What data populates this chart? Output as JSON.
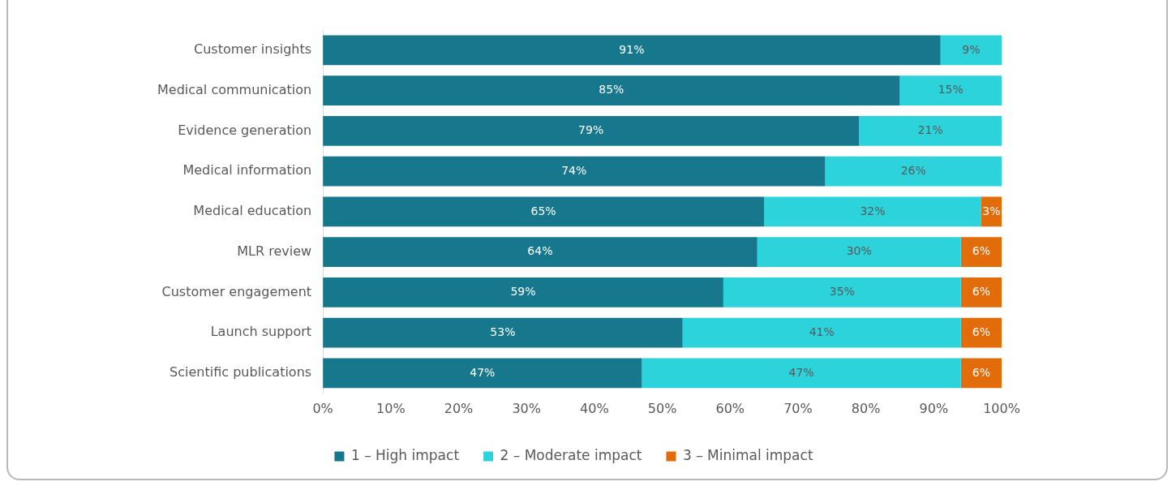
{
  "chart_data": {
    "type": "bar",
    "orientation": "horizontal",
    "stacked": true,
    "categories": [
      "Customer insights",
      "Medical communication",
      "Evidence generation",
      "Medical information",
      "Medical education",
      "MLR review",
      "Customer engagement",
      "Launch support",
      "Scientific publications"
    ],
    "series": [
      {
        "name": "1 – High impact",
        "color": "#17788d",
        "values": [
          91,
          85,
          79,
          74,
          65,
          64,
          59,
          53,
          47
        ],
        "value_labels": [
          "91%",
          "85%",
          "79%",
          "74%",
          "65%",
          "64%",
          "59%",
          "53%",
          "47%"
        ]
      },
      {
        "name": "2 – Moderate impact",
        "color": "#2dd3da",
        "values": [
          9,
          15,
          21,
          26,
          32,
          30,
          35,
          41,
          47
        ],
        "value_labels": [
          "9%",
          "15%",
          "21%",
          "26%",
          "32%",
          "30%",
          "35%",
          "41%",
          "47%"
        ]
      },
      {
        "name": "3 – Minimal impact",
        "color": "#e36c0a",
        "values": [
          0,
          0,
          0,
          0,
          3,
          6,
          6,
          6,
          6
        ],
        "value_labels": [
          null,
          null,
          null,
          null,
          "3%",
          "6%",
          "6%",
          "6%",
          "6%"
        ]
      }
    ],
    "xlim": [
      0,
      100
    ],
    "xticks": [
      {
        "value": 0,
        "label": "0%"
      },
      {
        "value": 10,
        "label": "10%"
      },
      {
        "value": 20,
        "label": "20%"
      },
      {
        "value": 30,
        "label": "30%"
      },
      {
        "value": 40,
        "label": "40%"
      },
      {
        "value": 50,
        "label": "50%"
      },
      {
        "value": 60,
        "label": "60%"
      },
      {
        "value": 70,
        "label": "70%"
      },
      {
        "value": 80,
        "label": "80%"
      },
      {
        "value": 90,
        "label": "90%"
      },
      {
        "value": 100,
        "label": "100%"
      }
    ],
    "grid": false,
    "legend": "bottom"
  }
}
